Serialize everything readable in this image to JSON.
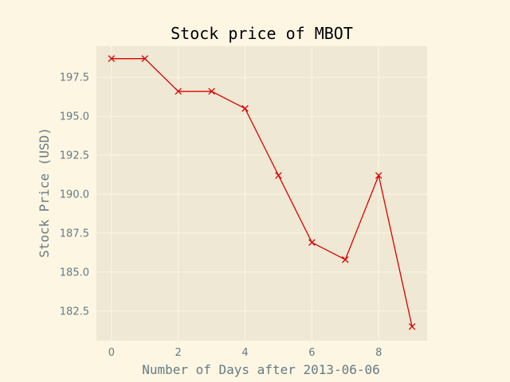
{
  "colors": {
    "figure_bg": "#fdf6e3",
    "axes_bg": "#eee8d5",
    "grid": "#fdf6e3",
    "line": "#dc0000",
    "text": "#657b83",
    "title": "#000000"
  },
  "chart_data": {
    "type": "line",
    "title": "Stock price of MBOT",
    "xlabel": "Number of Days after 2013-06-06",
    "ylabel": "Stock Price (USD)",
    "xlim": [
      -0.45,
      9.45
    ],
    "ylim": [
      180.6,
      199.5
    ],
    "xticks": [
      0,
      2,
      4,
      6,
      8
    ],
    "xtick_labels": [
      "0",
      "2",
      "4",
      "6",
      "8"
    ],
    "yticks": [
      182.5,
      185.0,
      187.5,
      190.0,
      192.5,
      195.0,
      197.5
    ],
    "ytick_labels": [
      "182.5",
      "185.0",
      "187.5",
      "190.0",
      "192.5",
      "195.0",
      "197.5"
    ],
    "grid": true,
    "marker": "x",
    "series": [
      {
        "x": [
          0,
          1,
          2,
          3,
          4,
          5,
          6,
          7,
          8,
          9
        ],
        "values": [
          198.7,
          198.7,
          196.6,
          196.6,
          195.5,
          191.2,
          186.9,
          185.8,
          191.2,
          181.5
        ]
      }
    ]
  }
}
